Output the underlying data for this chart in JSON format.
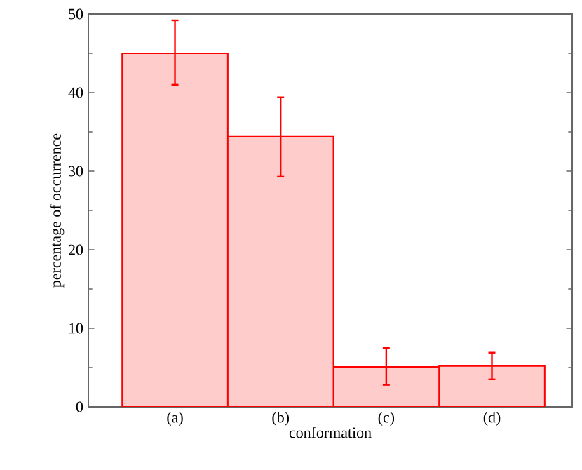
{
  "chart_data": {
    "type": "bar",
    "xlabel": "conformation",
    "ylabel": "percentage of occurrence",
    "categories": [
      "(a)",
      "(b)",
      "(c)",
      "(d)"
    ],
    "values": [
      45.0,
      34.4,
      5.1,
      5.2
    ],
    "errors": [
      [
        41.0,
        49.2
      ],
      [
        29.3,
        39.4
      ],
      [
        2.8,
        7.5
      ],
      [
        3.5,
        6.9
      ]
    ],
    "color": "#ffcccc",
    "ylim": [
      0,
      50
    ],
    "yticks": [
      0,
      10,
      20,
      30,
      40,
      50
    ]
  }
}
